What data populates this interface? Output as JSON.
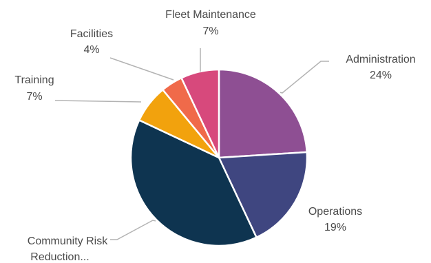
{
  "chart_data": {
    "type": "pie",
    "title": "",
    "slices": [
      {
        "label": "Administration",
        "value": 24,
        "value_label": "24%",
        "color": "#8e4f93"
      },
      {
        "label": "Operations",
        "value": 19,
        "value_label": "19%",
        "color": "#3f4680"
      },
      {
        "label": "Community Risk Reduction...",
        "label_lines": [
          "Community Risk",
          "Reduction..."
        ],
        "value": 39,
        "value_label": "",
        "color": "#0e3450"
      },
      {
        "label": "Training",
        "value": 7,
        "value_label": "7%",
        "color": "#f2a20d"
      },
      {
        "label": "Facilities",
        "value": 4,
        "value_label": "4%",
        "color": "#f06a4a"
      },
      {
        "label": "Fleet Maintenance",
        "value": 7,
        "value_label": "7%",
        "color": "#d7497c"
      }
    ],
    "legend": "none",
    "data_labels": "outside with leader lines"
  }
}
